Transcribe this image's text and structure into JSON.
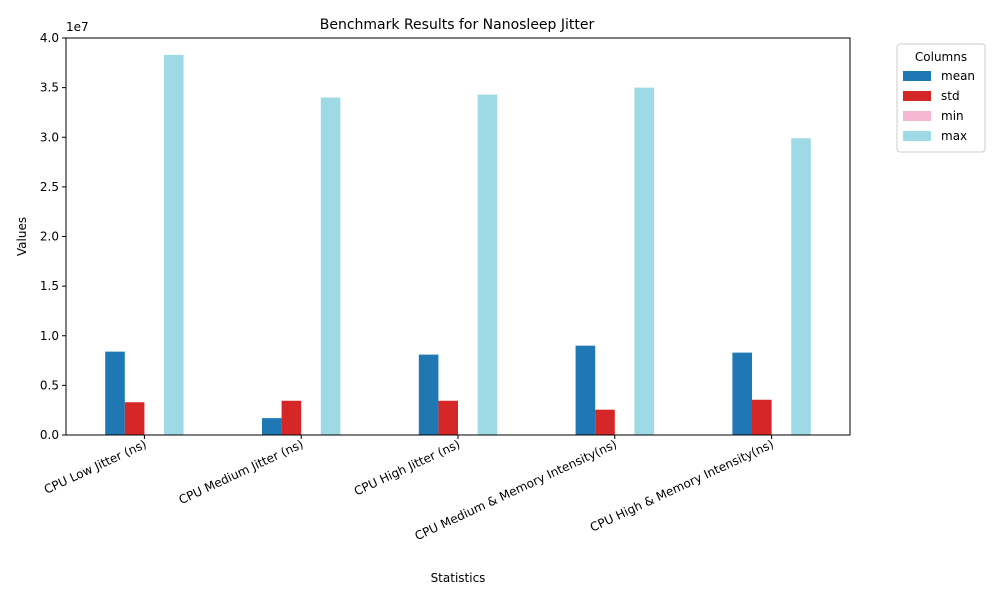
{
  "chart_data": {
    "type": "bar",
    "title": "Benchmark Results for Nanosleep Jitter",
    "xlabel": "Statistics",
    "ylabel": "Values",
    "y_scale_label": "1e7",
    "ylim": [
      0,
      40000000
    ],
    "yticks": [
      "0.0",
      "0.5",
      "1.0",
      "1.5",
      "2.0",
      "2.5",
      "3.0",
      "3.5",
      "4.0"
    ],
    "categories": [
      "CPU Low Jitter (ns)",
      "CPU Medium Jitter (ns)",
      "CPU High Jitter (ns)",
      "CPU Medium & Memory Intensity(ns)",
      "CPU High & Memory Intensity(ns)"
    ],
    "series": [
      {
        "name": "mean",
        "color": "#1f77b4",
        "values": [
          8400000,
          1700000,
          8100000,
          9000000,
          8300000
        ]
      },
      {
        "name": "std",
        "color": "#d62728",
        "values": [
          3300000,
          3450000,
          3450000,
          2550000,
          3550000
        ]
      },
      {
        "name": "min",
        "color": "#f7b6d2",
        "values": [
          60000,
          60000,
          60000,
          60000,
          60000
        ]
      },
      {
        "name": "max",
        "color": "#9edae5",
        "values": [
          38300000,
          34000000,
          34300000,
          35000000,
          29900000
        ]
      }
    ],
    "legend": {
      "title": "Columns",
      "placement": "outside-top-right"
    },
    "grid": false
  }
}
